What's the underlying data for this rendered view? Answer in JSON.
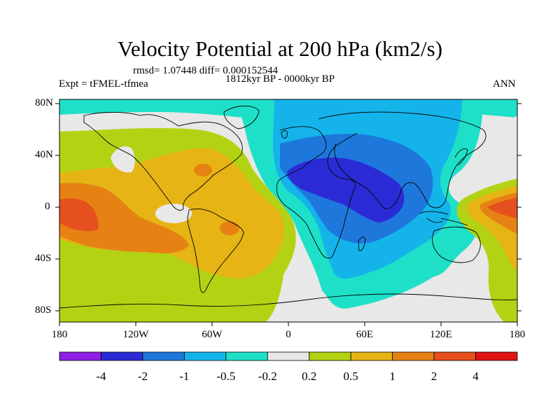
{
  "title": "Velocity Potential at 200 hPa (km2/s)",
  "stats": "rmsd= 1.07448 diff= 0.000152544",
  "period": "1812kyr BP - 0000kyr BP",
  "experiment": "Expt = tFMEL-tfmea",
  "season": "ANN",
  "lat_labels": [
    "80N",
    "40N",
    "0",
    "40S",
    "80S"
  ],
  "lon_labels": [
    "180",
    "120W",
    "60W",
    "0",
    "60E",
    "120E",
    "180"
  ],
  "colorbar": {
    "colors": [
      "#8f1ee6",
      "#2b2bd6",
      "#1e78dc",
      "#14b4ea",
      "#1ee0c8",
      "#e8e8e8",
      "#b4d214",
      "#e6b414",
      "#e68214",
      "#e6501e",
      "#e01414"
    ],
    "labels": [
      "-4",
      "-2",
      "-1",
      "-0.5",
      "-0.2",
      "0.2",
      "0.5",
      "1",
      "2",
      "4"
    ]
  },
  "fields": {
    "positive_broad": "#b4d214",
    "positive_mid": "#e6b414",
    "positive_strong": "#e68214",
    "positive_max": "#e6501e",
    "near_zero": "#e8e8e8",
    "negative_weak": "#1ee0c8",
    "negative_mid": "#14b4ea",
    "negative_strong": "#1e78dc",
    "negative_max": "#2b2bd6"
  }
}
